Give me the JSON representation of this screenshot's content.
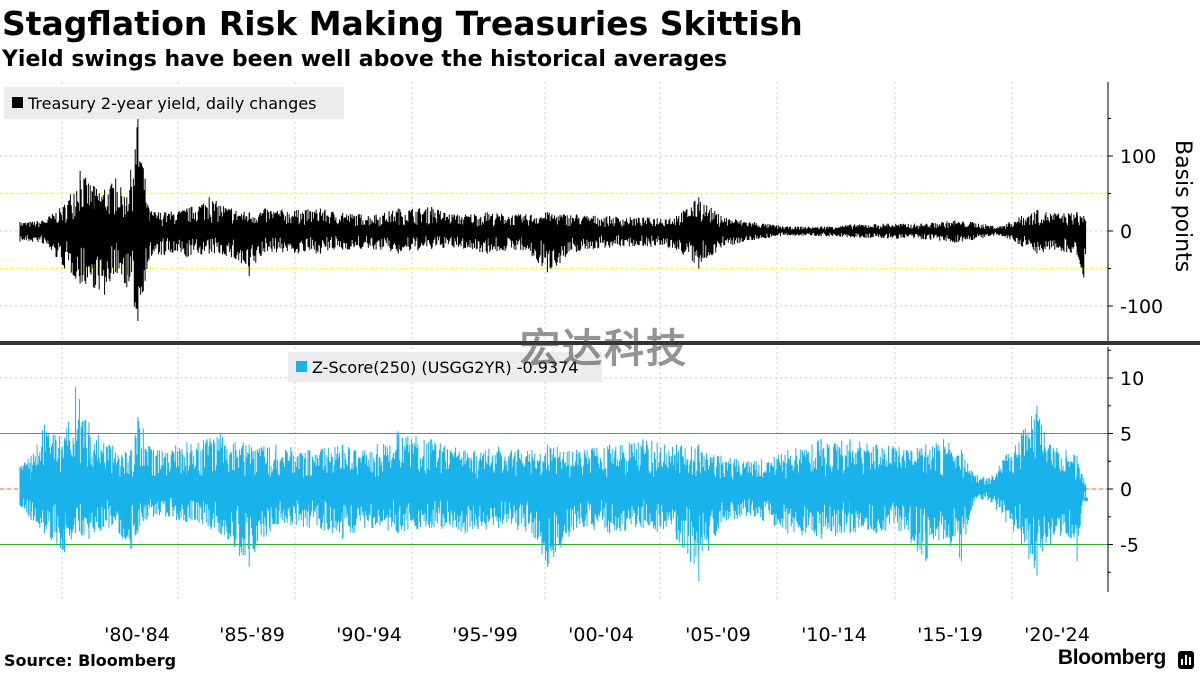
{
  "header": {
    "title": "Stagflation Risk Making Treasuries Skittish",
    "subtitle": "Yield swings have been well above the historical averages"
  },
  "footer": {
    "source": "Source: Bloomberg",
    "brand": "Bloomberg"
  },
  "watermark": "宏达科技",
  "colors": {
    "top_series": "#000000",
    "bottom_series": "#1ab2ea",
    "top_threshold": "#ffff33",
    "bottom_threshold": "#2ab52a",
    "zero_line_bottom": "#e8603c",
    "grid": "#c8c8c8"
  },
  "chart_data": [
    {
      "type": "line",
      "legend": "Treasury 2-year yield, daily changes",
      "ylabel": "Basis points",
      "ylim": [
        -150,
        200
      ],
      "yticks": [
        -100,
        0,
        100
      ],
      "threshold_lines": [
        50,
        -50
      ],
      "x_categories": [
        "'80-'84",
        "'85-'89",
        "'90-'94",
        "'95-'99",
        "'00-'04",
        "'05-'09",
        "'10-'14",
        "'15-'19",
        "'20-'24"
      ],
      "xlim": [
        1977.5,
        2025.4
      ],
      "series": [
        {
          "name": "Treasury 2-year yield, daily changes",
          "envelope": [
            {
              "x": 1977.5,
              "hi": 12,
              "lo": -14
            },
            {
              "x": 1978.5,
              "hi": 14,
              "lo": -16
            },
            {
              "x": 1979.5,
              "hi": 35,
              "lo": -50
            },
            {
              "x": 1980.2,
              "hi": 80,
              "lo": -70
            },
            {
              "x": 1980.8,
              "hi": 60,
              "lo": -75
            },
            {
              "x": 1981.3,
              "hi": 55,
              "lo": -85
            },
            {
              "x": 1981.8,
              "hi": 70,
              "lo": -55
            },
            {
              "x": 1982.3,
              "hi": 45,
              "lo": -75
            },
            {
              "x": 1982.8,
              "hi": 150,
              "lo": -120
            },
            {
              "x": 1983.3,
              "hi": 28,
              "lo": -38
            },
            {
              "x": 1984.0,
              "hi": 25,
              "lo": -32
            },
            {
              "x": 1985.0,
              "hi": 30,
              "lo": -35
            },
            {
              "x": 1986.0,
              "hi": 45,
              "lo": -30
            },
            {
              "x": 1987.0,
              "hi": 30,
              "lo": -35
            },
            {
              "x": 1987.8,
              "hi": 25,
              "lo": -60
            },
            {
              "x": 1988.5,
              "hi": 30,
              "lo": -28
            },
            {
              "x": 1990.0,
              "hi": 28,
              "lo": -30
            },
            {
              "x": 1991.0,
              "hi": 30,
              "lo": -30
            },
            {
              "x": 1992.0,
              "hi": 24,
              "lo": -25
            },
            {
              "x": 1993.5,
              "hi": 22,
              "lo": -25
            },
            {
              "x": 1994.5,
              "hi": 30,
              "lo": -30
            },
            {
              "x": 1996.0,
              "hi": 32,
              "lo": -24
            },
            {
              "x": 1997.0,
              "hi": 22,
              "lo": -22
            },
            {
              "x": 1998.5,
              "hi": 25,
              "lo": -30
            },
            {
              "x": 2000.0,
              "hi": 22,
              "lo": -25
            },
            {
              "x": 2001.2,
              "hi": 25,
              "lo": -55
            },
            {
              "x": 2002.5,
              "hi": 22,
              "lo": -28
            },
            {
              "x": 2004.0,
              "hi": 20,
              "lo": -22
            },
            {
              "x": 2005.5,
              "hi": 18,
              "lo": -20
            },
            {
              "x": 2007.0,
              "hi": 20,
              "lo": -25
            },
            {
              "x": 2008.0,
              "hi": 45,
              "lo": -50
            },
            {
              "x": 2009.0,
              "hi": 20,
              "lo": -22
            },
            {
              "x": 2010.5,
              "hi": 12,
              "lo": -12
            },
            {
              "x": 2012.0,
              "hi": 6,
              "lo": -6
            },
            {
              "x": 2013.5,
              "hi": 6,
              "lo": -7
            },
            {
              "x": 2015.0,
              "hi": 9,
              "lo": -9
            },
            {
              "x": 2016.5,
              "hi": 10,
              "lo": -10
            },
            {
              "x": 2018.0,
              "hi": 10,
              "lo": -11
            },
            {
              "x": 2019.5,
              "hi": 14,
              "lo": -16
            },
            {
              "x": 2020.3,
              "hi": 12,
              "lo": -12
            },
            {
              "x": 2021.5,
              "hi": 6,
              "lo": -6
            },
            {
              "x": 2022.5,
              "hi": 20,
              "lo": -20
            },
            {
              "x": 2023.2,
              "hi": 28,
              "lo": -30
            },
            {
              "x": 2024.0,
              "hi": 24,
              "lo": -25
            },
            {
              "x": 2025.0,
              "hi": 25,
              "lo": -32
            },
            {
              "x": 2025.3,
              "hi": 20,
              "lo": -62
            }
          ]
        }
      ]
    },
    {
      "type": "line",
      "legend": "Z-Score(250) (USGG2YR) -0.9374",
      "ylim": [
        -9.5,
        13
      ],
      "yticks": [
        -5,
        0,
        5,
        10
      ],
      "threshold_lines": [
        5,
        -5
      ],
      "last_value": -0.9374,
      "xlim": [
        1977.5,
        2025.4
      ],
      "series": [
        {
          "name": "Z-Score(250) (USGG2YR)",
          "envelope": [
            {
              "x": 1977.5,
              "hi": 2.0,
              "lo": -1.5
            },
            {
              "x": 1978.0,
              "hi": 3.0,
              "lo": -2.8
            },
            {
              "x": 1978.6,
              "hi": 5.8,
              "lo": -4.0
            },
            {
              "x": 1979.5,
              "hi": 4.5,
              "lo": -5.7
            },
            {
              "x": 1980.0,
              "hi": 9.2,
              "lo": -4.0
            },
            {
              "x": 1980.6,
              "hi": 6.0,
              "lo": -4.5
            },
            {
              "x": 1981.5,
              "hi": 4.0,
              "lo": -3.5
            },
            {
              "x": 1982.5,
              "hi": 3.5,
              "lo": -5.4
            },
            {
              "x": 1982.8,
              "hi": 6.5,
              "lo": -4.0
            },
            {
              "x": 1983.5,
              "hi": 3.5,
              "lo": -2.5
            },
            {
              "x": 1985.0,
              "hi": 4.2,
              "lo": -3.0
            },
            {
              "x": 1986.5,
              "hi": 5.0,
              "lo": -4.0
            },
            {
              "x": 1987.8,
              "hi": 4.0,
              "lo": -7.0
            },
            {
              "x": 1989.0,
              "hi": 4.0,
              "lo": -3.2
            },
            {
              "x": 1990.5,
              "hi": 3.5,
              "lo": -3.5
            },
            {
              "x": 1992.0,
              "hi": 4.0,
              "lo": -4.5
            },
            {
              "x": 1993.0,
              "hi": 3.5,
              "lo": -3.5
            },
            {
              "x": 1994.5,
              "hi": 5.2,
              "lo": -4.0
            },
            {
              "x": 1996.0,
              "hi": 4.5,
              "lo": -3.5
            },
            {
              "x": 1997.5,
              "hi": 3.5,
              "lo": -4.0
            },
            {
              "x": 1999.0,
              "hi": 3.8,
              "lo": -3.5
            },
            {
              "x": 2000.5,
              "hi": 3.5,
              "lo": -4.0
            },
            {
              "x": 2001.2,
              "hi": 4.0,
              "lo": -7.0
            },
            {
              "x": 2002.5,
              "hi": 3.5,
              "lo": -3.5
            },
            {
              "x": 2004.0,
              "hi": 4.0,
              "lo": -4.0
            },
            {
              "x": 2005.5,
              "hi": 4.5,
              "lo": -3.5
            },
            {
              "x": 2007.0,
              "hi": 4.0,
              "lo": -4.5
            },
            {
              "x": 2008.0,
              "hi": 4.0,
              "lo": -8.3
            },
            {
              "x": 2009.0,
              "hi": 3.0,
              "lo": -3.0
            },
            {
              "x": 2010.5,
              "hi": 2.5,
              "lo": -2.5
            },
            {
              "x": 2012.0,
              "hi": 3.5,
              "lo": -4.0
            },
            {
              "x": 2013.5,
              "hi": 4.5,
              "lo": -4.5
            },
            {
              "x": 2014.8,
              "hi": 4.5,
              "lo": -4.0
            },
            {
              "x": 2016.0,
              "hi": 4.0,
              "lo": -4.0
            },
            {
              "x": 2017.0,
              "hi": 3.8,
              "lo": -3.8
            },
            {
              "x": 2018.2,
              "hi": 4.0,
              "lo": -6.5
            },
            {
              "x": 2019.0,
              "hi": 4.5,
              "lo": -4.5
            },
            {
              "x": 2019.8,
              "hi": 3.5,
              "lo": -6.5
            },
            {
              "x": 2020.3,
              "hi": 1.5,
              "lo": -1.5
            },
            {
              "x": 2021.0,
              "hi": 1.0,
              "lo": -1.0
            },
            {
              "x": 2021.8,
              "hi": 3.0,
              "lo": -3.0
            },
            {
              "x": 2022.5,
              "hi": 5.0,
              "lo": -5.0
            },
            {
              "x": 2023.2,
              "hi": 7.5,
              "lo": -7.8
            },
            {
              "x": 2023.8,
              "hi": 4.0,
              "lo": -5.0
            },
            {
              "x": 2024.5,
              "hi": 3.5,
              "lo": -4.0
            },
            {
              "x": 2025.0,
              "hi": 3.0,
              "lo": -6.5
            },
            {
              "x": 2025.3,
              "hi": 1.0,
              "lo": -0.9374
            }
          ]
        }
      ]
    }
  ]
}
